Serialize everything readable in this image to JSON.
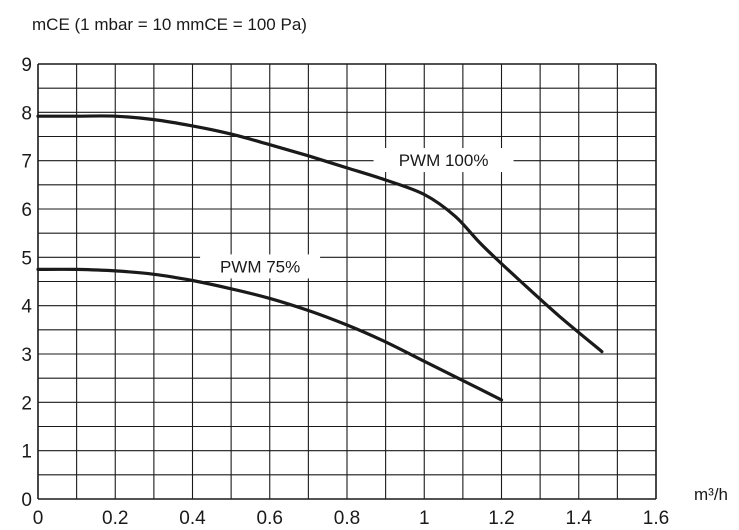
{
  "chart_data": {
    "type": "line",
    "title": "",
    "ylabel": "mCE (1 mbar = 10 mmCE = 100 Pa)",
    "xlabel": "m³/h",
    "xlim": [
      0,
      1.6
    ],
    "ylim": [
      0,
      9
    ],
    "x_ticks": [
      "0",
      "0.2",
      "0.4",
      "0.6",
      "0.8",
      "1",
      "1.2",
      "1.4",
      "1.6"
    ],
    "y_ticks": [
      "0",
      "1",
      "2",
      "3",
      "4",
      "5",
      "6",
      "7",
      "8",
      "9"
    ],
    "grid": true,
    "legend": "none",
    "colors": {
      "grid": "#1a1a1a",
      "curve": "#1a1a1a",
      "text": "#1a1a1a"
    },
    "series": [
      {
        "name": "PWM 100%",
        "points": [
          [
            0.0,
            7.92
          ],
          [
            0.1,
            7.92
          ],
          [
            0.2,
            7.92
          ],
          [
            0.3,
            7.85
          ],
          [
            0.4,
            7.72
          ],
          [
            0.5,
            7.55
          ],
          [
            0.6,
            7.33
          ],
          [
            0.7,
            7.1
          ],
          [
            0.8,
            6.85
          ],
          [
            0.9,
            6.6
          ],
          [
            1.0,
            6.3
          ],
          [
            1.08,
            5.85
          ],
          [
            1.15,
            5.25
          ],
          [
            1.25,
            4.5
          ],
          [
            1.35,
            3.78
          ],
          [
            1.46,
            3.05
          ]
        ]
      },
      {
        "name": "PWM 75%",
        "points": [
          [
            0.0,
            4.75
          ],
          [
            0.1,
            4.75
          ],
          [
            0.2,
            4.72
          ],
          [
            0.3,
            4.65
          ],
          [
            0.4,
            4.52
          ],
          [
            0.5,
            4.35
          ],
          [
            0.6,
            4.15
          ],
          [
            0.7,
            3.9
          ],
          [
            0.8,
            3.6
          ],
          [
            0.9,
            3.25
          ],
          [
            1.0,
            2.85
          ],
          [
            1.1,
            2.45
          ],
          [
            1.2,
            2.05
          ]
        ]
      }
    ]
  }
}
